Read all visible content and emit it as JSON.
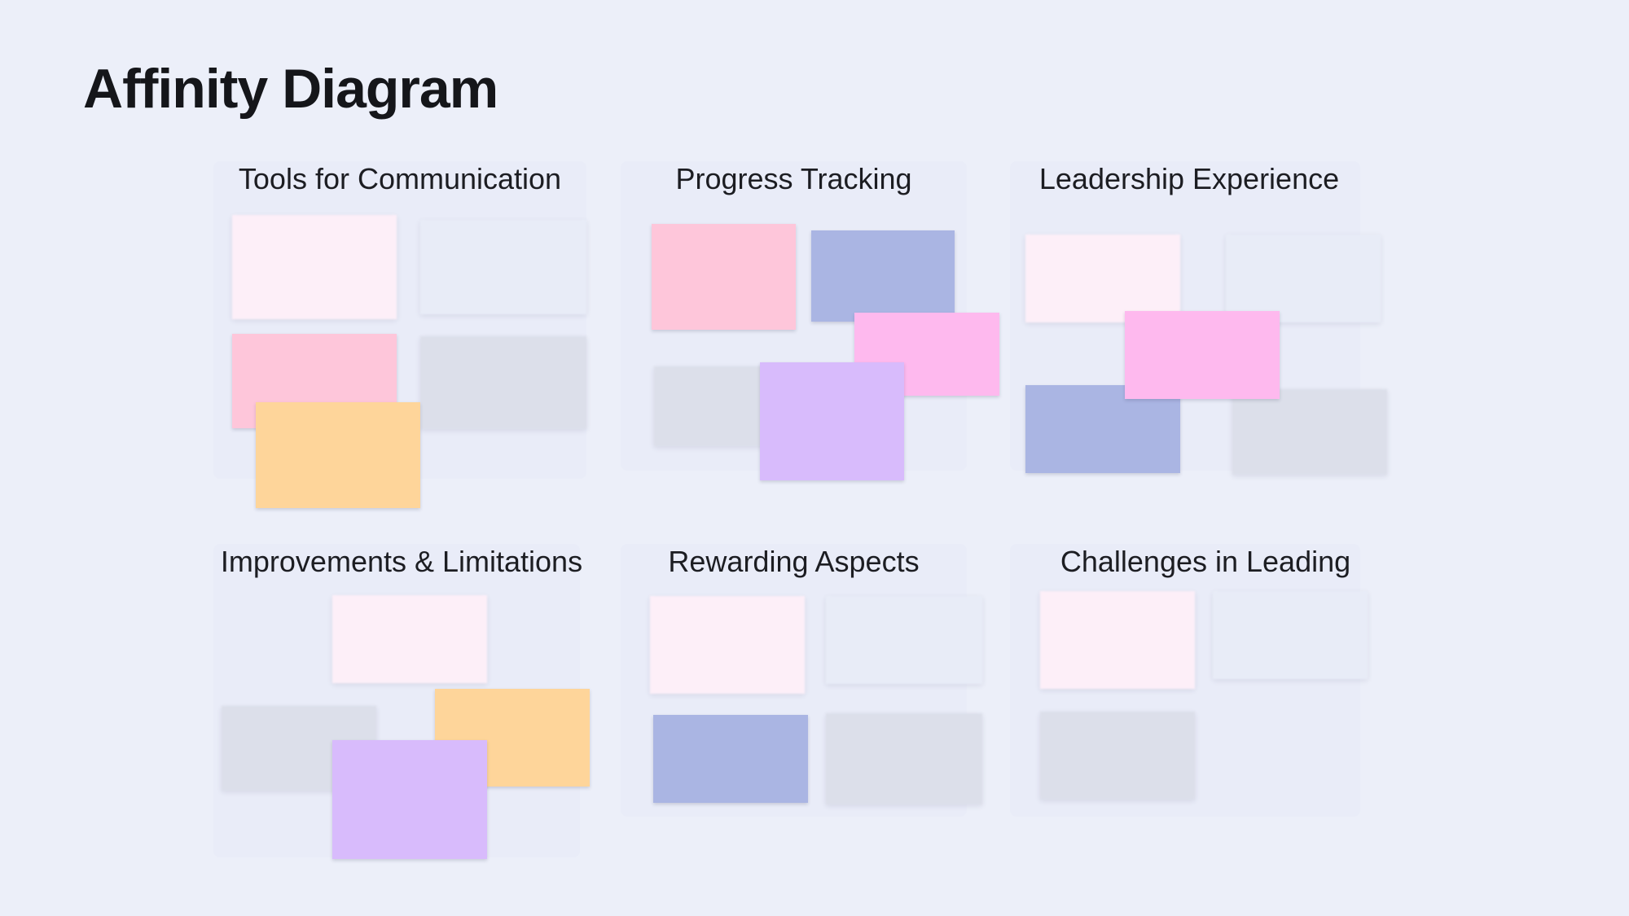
{
  "title": "Affinity Diagram",
  "colors": {
    "background": "#ECEFF9",
    "pale_pink": "#FDEFF8",
    "pale_blue": "#E8ECF7",
    "light_gray": "#DCDFEA",
    "pink": "#FEC6DA",
    "periwinkle": "#AAB5E3",
    "magenta_pink": "#FEB9EE",
    "lavender": "#D8BBFC",
    "peach": "#FED59A"
  },
  "groups": [
    {
      "title": "Tools for Communication",
      "notes": [
        "pale_pink",
        "pale_blue",
        "pink",
        "light_gray",
        "peach"
      ]
    },
    {
      "title": "Progress Tracking",
      "notes": [
        "pink",
        "periwinkle",
        "magenta_pink",
        "light_gray",
        "lavender"
      ]
    },
    {
      "title": "Leadership Experience",
      "notes": [
        "pale_pink",
        "pale_blue",
        "periwinkle",
        "light_gray",
        "magenta_pink"
      ]
    },
    {
      "title": "Improvements & Limitations",
      "notes": [
        "pale_pink",
        "light_gray",
        "peach",
        "lavender"
      ]
    },
    {
      "title": "Rewarding Aspects",
      "notes": [
        "pale_pink",
        "pale_blue",
        "periwinkle",
        "light_gray"
      ]
    },
    {
      "title": "Challenges in Leading",
      "notes": [
        "pale_pink",
        "pale_blue",
        "light_gray"
      ]
    }
  ]
}
